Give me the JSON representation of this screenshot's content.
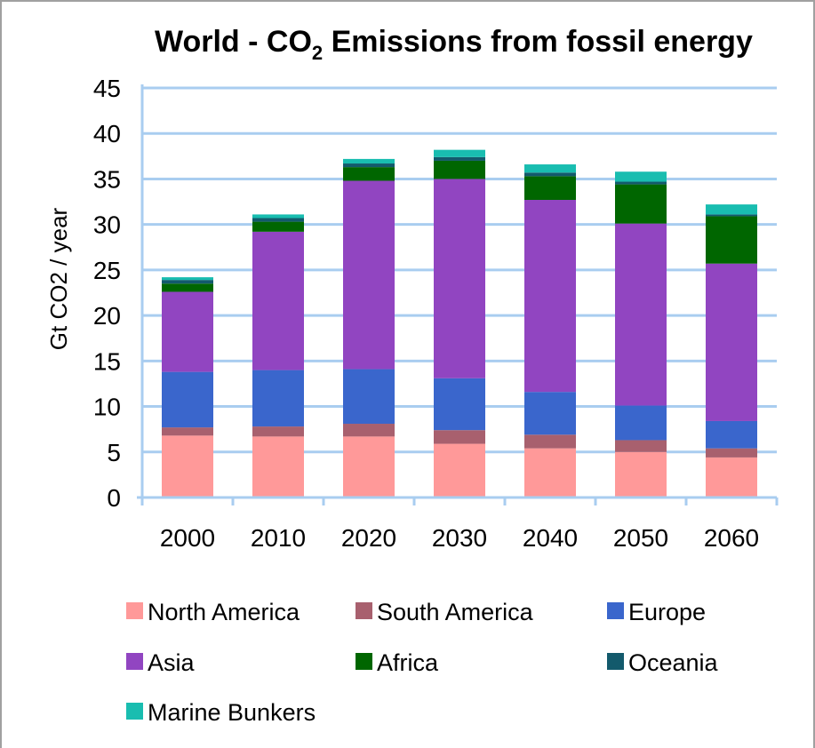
{
  "chart_data": {
    "type": "bar",
    "stacked": true,
    "title_prefix": "World - CO",
    "title_subscript": "2",
    "title_suffix": " Emissions from fossil energy",
    "ylabel": "Gt CO2 / year",
    "xlabel": "",
    "ylim": [
      0,
      45
    ],
    "yticks": [
      "0",
      "5",
      "10",
      "15",
      "20",
      "25",
      "30",
      "35",
      "40",
      "45"
    ],
    "grid": true,
    "legend_position": "bottom",
    "categories": [
      "2000",
      "2010",
      "2020",
      "2030",
      "2040",
      "2050",
      "2060"
    ],
    "series": [
      {
        "name": "North America",
        "color": "#ff9999",
        "values": [
          6.8,
          6.7,
          6.7,
          5.9,
          5.4,
          5.0,
          4.4
        ]
      },
      {
        "name": "South America",
        "color": "#a8606e",
        "values": [
          0.9,
          1.1,
          1.4,
          1.5,
          1.5,
          1.3,
          1.0
        ]
      },
      {
        "name": "Europe",
        "color": "#3a66cc",
        "values": [
          6.1,
          6.2,
          6.0,
          5.7,
          4.7,
          3.8,
          3.0
        ]
      },
      {
        "name": "Asia",
        "color": "#9145c1",
        "values": [
          8.8,
          15.2,
          20.7,
          21.9,
          21.1,
          20.0,
          17.3
        ]
      },
      {
        "name": "Africa",
        "color": "#006600",
        "values": [
          0.9,
          1.1,
          1.5,
          2.0,
          2.6,
          4.3,
          5.2
        ]
      },
      {
        "name": "Oceania",
        "color": "#135a6c",
        "values": [
          0.4,
          0.4,
          0.4,
          0.4,
          0.4,
          0.3,
          0.2
        ]
      },
      {
        "name": "Marine Bunkers",
        "color": "#19bdb0",
        "values": [
          0.3,
          0.4,
          0.5,
          0.8,
          0.9,
          1.1,
          1.1
        ]
      }
    ]
  }
}
